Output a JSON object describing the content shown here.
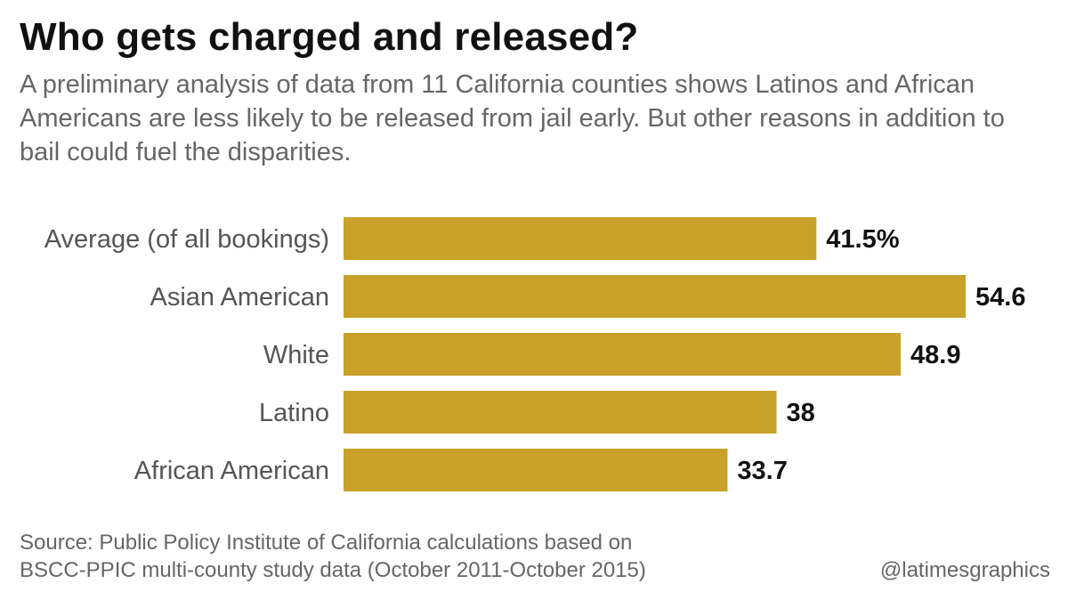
{
  "title": "Who gets charged and released?",
  "subtitle": "A preliminary analysis of data from 11 California counties shows Latinos and African Americans are less likely to be released from jail early. But other reasons in addition to bail could fuel the disparities.",
  "source": {
    "line1": "Source: Public Policy Institute of California calculations based on",
    "line2": "BSCC-PPIC multi-county study data (October 2011-October 2015)"
  },
  "credit": "@latimesgraphics",
  "colors": {
    "bar": "#c9a12a",
    "title": "#111111",
    "text": "#666666"
  },
  "chart_data": {
    "type": "bar",
    "orientation": "horizontal",
    "title": "Who gets charged and released?",
    "categories": [
      "Average (of all bookings)",
      "Asian American",
      "White",
      "Latino",
      "African American"
    ],
    "values": [
      41.5,
      54.6,
      48.9,
      38,
      33.7
    ],
    "value_labels": [
      "41.5%",
      "54.6",
      "48.9",
      "38",
      "33.7"
    ],
    "xlim": [
      0,
      54.6
    ],
    "xlabel": "",
    "ylabel": "",
    "grid": false,
    "legend": "none"
  }
}
